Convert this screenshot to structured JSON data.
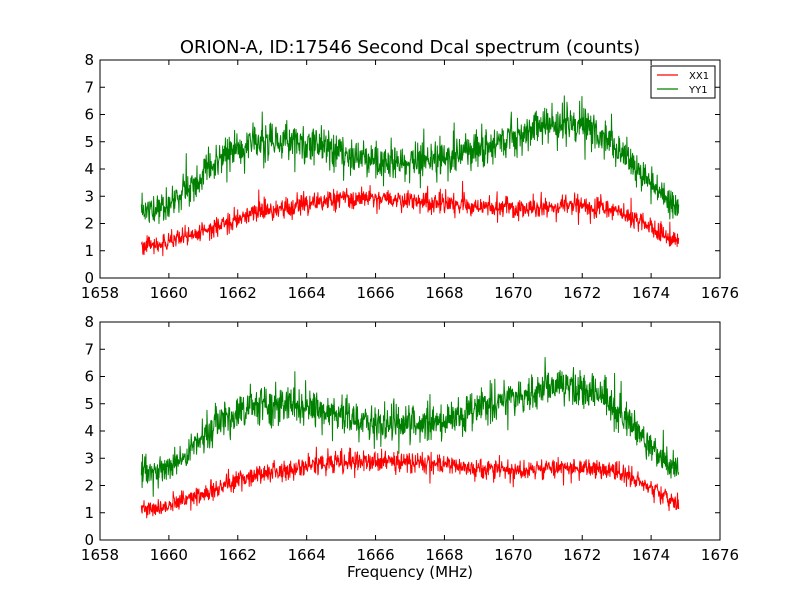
{
  "chart_data": [
    {
      "type": "line",
      "title": "ORION-A, ID:17546 Second Dcal spectrum (counts)",
      "xlabel": "",
      "ylabel": "",
      "xlim": [
        1658,
        1676
      ],
      "ylim": [
        0,
        8
      ],
      "xticks": [
        1658,
        1660,
        1662,
        1664,
        1666,
        1668,
        1670,
        1672,
        1674,
        1676
      ],
      "yticks": [
        0,
        1,
        2,
        3,
        4,
        5,
        6,
        7,
        8
      ],
      "legend": {
        "position": "top-right",
        "entries": [
          "XX1",
          "YY1"
        ]
      },
      "series": [
        {
          "name": "XX1",
          "color": "#ff0000",
          "x": [
            1659.2,
            1659.6,
            1660.0,
            1660.5,
            1661.0,
            1661.5,
            1662.0,
            1662.5,
            1663.0,
            1663.5,
            1664.0,
            1664.5,
            1665.0,
            1665.5,
            1666.0,
            1666.5,
            1667.0,
            1667.5,
            1668.0,
            1668.5,
            1669.0,
            1669.5,
            1670.0,
            1670.5,
            1671.0,
            1671.5,
            1672.0,
            1672.5,
            1673.0,
            1673.5,
            1674.0,
            1674.5,
            1674.8
          ],
          "y": [
            1.2,
            1.2,
            1.3,
            1.5,
            1.7,
            1.9,
            2.2,
            2.4,
            2.5,
            2.6,
            2.7,
            2.8,
            2.9,
            2.9,
            2.9,
            2.9,
            2.85,
            2.8,
            2.75,
            2.7,
            2.6,
            2.6,
            2.55,
            2.55,
            2.6,
            2.65,
            2.65,
            2.6,
            2.5,
            2.2,
            1.9,
            1.5,
            1.3
          ],
          "noise": 0.4
        },
        {
          "name": "YY1",
          "color": "#008000",
          "x": [
            1659.2,
            1659.6,
            1660.0,
            1660.5,
            1661.0,
            1661.5,
            1662.0,
            1662.5,
            1663.0,
            1663.5,
            1664.0,
            1664.5,
            1665.0,
            1665.5,
            1666.0,
            1666.5,
            1667.0,
            1667.5,
            1668.0,
            1668.5,
            1669.0,
            1669.5,
            1670.0,
            1670.5,
            1671.0,
            1671.5,
            1672.0,
            1672.5,
            1673.0,
            1673.5,
            1674.0,
            1674.5,
            1674.8
          ],
          "y": [
            2.5,
            2.5,
            2.7,
            3.2,
            3.8,
            4.4,
            4.8,
            5.0,
            5.0,
            5.0,
            4.9,
            4.8,
            4.6,
            4.4,
            4.3,
            4.2,
            4.25,
            4.3,
            4.4,
            4.6,
            4.8,
            5.0,
            5.2,
            5.4,
            5.6,
            5.7,
            5.6,
            5.3,
            4.8,
            4.1,
            3.4,
            2.8,
            2.5
          ],
          "noise": 0.6
        }
      ]
    },
    {
      "type": "line",
      "title": "",
      "xlabel": "Frequency (MHz)",
      "ylabel": "",
      "xlim": [
        1658,
        1676
      ],
      "ylim": [
        0,
        8
      ],
      "xticks": [
        1658,
        1660,
        1662,
        1664,
        1666,
        1668,
        1670,
        1672,
        1674,
        1676
      ],
      "yticks": [
        0,
        1,
        2,
        3,
        4,
        5,
        6,
        7,
        8
      ],
      "legend": null,
      "series": [
        {
          "name": "XX1",
          "color": "#ff0000",
          "x": [
            1659.2,
            1659.6,
            1660.0,
            1660.5,
            1661.0,
            1661.5,
            1662.0,
            1662.5,
            1663.0,
            1663.5,
            1664.0,
            1664.5,
            1665.0,
            1665.5,
            1666.0,
            1666.5,
            1667.0,
            1667.5,
            1668.0,
            1668.5,
            1669.0,
            1669.5,
            1670.0,
            1670.5,
            1671.0,
            1671.5,
            1672.0,
            1672.5,
            1673.0,
            1673.5,
            1674.0,
            1674.5,
            1674.8
          ],
          "y": [
            1.2,
            1.2,
            1.3,
            1.5,
            1.7,
            1.9,
            2.2,
            2.4,
            2.5,
            2.6,
            2.7,
            2.8,
            2.9,
            2.9,
            2.9,
            2.9,
            2.85,
            2.8,
            2.75,
            2.7,
            2.6,
            2.6,
            2.55,
            2.55,
            2.6,
            2.65,
            2.65,
            2.6,
            2.5,
            2.2,
            1.9,
            1.5,
            1.3
          ],
          "noise": 0.4
        },
        {
          "name": "YY1",
          "color": "#008000",
          "x": [
            1659.2,
            1659.6,
            1660.0,
            1660.5,
            1661.0,
            1661.5,
            1662.0,
            1662.5,
            1663.0,
            1663.5,
            1664.0,
            1664.5,
            1665.0,
            1665.5,
            1666.0,
            1666.5,
            1667.0,
            1667.5,
            1668.0,
            1668.5,
            1669.0,
            1669.5,
            1670.0,
            1670.5,
            1671.0,
            1671.5,
            1672.0,
            1672.5,
            1673.0,
            1673.5,
            1674.0,
            1674.5,
            1674.8
          ],
          "y": [
            2.5,
            2.5,
            2.7,
            3.2,
            3.8,
            4.4,
            4.8,
            5.0,
            5.0,
            5.0,
            4.9,
            4.8,
            4.6,
            4.4,
            4.3,
            4.2,
            4.25,
            4.3,
            4.4,
            4.6,
            4.8,
            5.0,
            5.2,
            5.4,
            5.6,
            5.7,
            5.6,
            5.3,
            4.8,
            4.1,
            3.4,
            2.8,
            2.5
          ],
          "noise": 0.6
        }
      ]
    }
  ]
}
